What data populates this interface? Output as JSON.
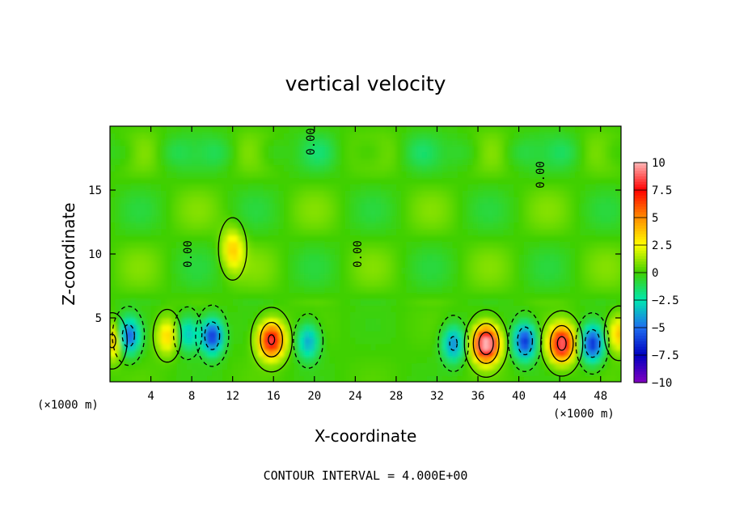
{
  "chart_data": {
    "type": "heatmap",
    "title": "vertical velocity",
    "xlabel": "X-coordinate",
    "ylabel": "Z-coordinate",
    "x_unit_left": "(×1000 m)",
    "x_unit_right": "(×1000 m)",
    "xlim": [
      0,
      50
    ],
    "ylim": [
      0,
      20
    ],
    "x_ticks": [
      "4",
      "8",
      "12",
      "16",
      "20",
      "24",
      "28",
      "32",
      "36",
      "40",
      "44",
      "48"
    ],
    "x_tick_values": [
      4,
      8,
      12,
      16,
      20,
      24,
      28,
      32,
      36,
      40,
      44,
      48
    ],
    "y_ticks": [
      "5",
      "10",
      "15"
    ],
    "y_tick_values": [
      5,
      10,
      15
    ],
    "colorbar": {
      "labels": [
        "10",
        "7.5",
        "5",
        "2.5",
        "0",
        "−2.5",
        "−5",
        "−7.5",
        "−10"
      ],
      "values": [
        10,
        7.5,
        5,
        2.5,
        0,
        -2.5,
        -5,
        -7.5,
        -10
      ],
      "colors": [
        "#ffb8b8",
        "#ff0000",
        "#ff8c00",
        "#ffff00",
        "#40d000",
        "#00e8b0",
        "#1e6ef0",
        "#0000c0",
        "#8000c0"
      ]
    },
    "contour_labels": [
      {
        "text": "0.00",
        "x": 8.0,
        "z": 10.0
      },
      {
        "text": "0.00",
        "x": 24.6,
        "z": 10.0
      },
      {
        "text": "0.00",
        "x": 42.5,
        "z": 16.2
      },
      {
        "text": "0.00",
        "x": 20.0,
        "z": 18.8
      }
    ],
    "features": [
      {
        "x": 12.0,
        "z": 10.4,
        "value": 3.5
      },
      {
        "x": 1.8,
        "z": 3.6,
        "value": -5.5
      },
      {
        "x": 5.6,
        "z": 3.6,
        "value": 3.5
      },
      {
        "x": 7.6,
        "z": 3.8,
        "value": -3.5
      },
      {
        "x": 10.0,
        "z": 3.6,
        "value": -6.5
      },
      {
        "x": 15.8,
        "z": 3.3,
        "value": 8.5
      },
      {
        "x": 19.4,
        "z": 3.2,
        "value": -4.0
      },
      {
        "x": 33.6,
        "z": 3.0,
        "value": -4.5
      },
      {
        "x": 36.8,
        "z": 3.0,
        "value": 11.0
      },
      {
        "x": 40.6,
        "z": 3.2,
        "value": -6.5
      },
      {
        "x": 44.2,
        "z": 3.0,
        "value": 9.0
      },
      {
        "x": 47.2,
        "z": 3.0,
        "value": -6.5
      },
      {
        "x": 49.8,
        "z": 3.8,
        "value": 4.0
      },
      {
        "x": 0.2,
        "z": 3.2,
        "value": 4.5
      }
    ],
    "grid": false,
    "legend": "colorbar-right"
  },
  "footer": "CONTOUR INTERVAL = 4.000E+00"
}
